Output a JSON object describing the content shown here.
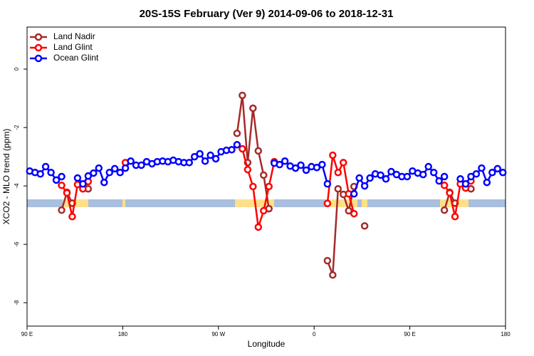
{
  "chart_data": {
    "type": "line",
    "title": "20S-15S February (Ver 9)   2014-09-06 to 2018-12-31",
    "x_label": "Longitude",
    "y_label": "XCO2 - MLO trend (ppm)",
    "xlim": [
      90,
      540
    ],
    "ylim": [
      -8.8,
      1.44
    ],
    "xticks": [
      {
        "value": 90,
        "label": "90 E"
      },
      180,
      {
        "value": 270,
        "label": "90 W"
      },
      {
        "value": 360,
        "label": "0"
      },
      {
        "value": 450,
        "label": "90 E"
      },
      {
        "value": 540,
        "label": "180"
      }
    ],
    "yticks": [
      0,
      -2,
      -4,
      -6,
      -8
    ],
    "legend": "upper left",
    "x": [
      92.5,
      97.5,
      102.5,
      107.5,
      112.5,
      117.5,
      122.5,
      127.5,
      132.5,
      137.5,
      142.5,
      147.5,
      152.5,
      157.5,
      162.5,
      167.5,
      172.5,
      177.5,
      182.5,
      187.5,
      192.5,
      197.5,
      202.5,
      207.5,
      212.5,
      217.5,
      222.5,
      227.5,
      232.5,
      237.5,
      242.5,
      247.5,
      252.5,
      257.5,
      262.5,
      267.5,
      272.5,
      277.5,
      282.5,
      287.5,
      292.5,
      297.5,
      302.5,
      307.5,
      312.5,
      317.5,
      322.5,
      327.5,
      332.5,
      337.5,
      342.5,
      347.5,
      352.5,
      357.5,
      362.5,
      367.5,
      372.5,
      377.5,
      382.5,
      387.5,
      392.5,
      397.5,
      402.5,
      407.5,
      412.5,
      417.5,
      422.5,
      427.5,
      432.5,
      437.5,
      442.5,
      447.5,
      452.5,
      457.5,
      462.5,
      467.5,
      472.5,
      477.5,
      482.5,
      487.5,
      492.5,
      497.5,
      502.5,
      507.5,
      512.5,
      517.5,
      522.5,
      527.5,
      532.5,
      537.5
    ],
    "series": [
      {
        "name": "Land Nadir",
        "color": "#a52a2a",
        "values": [
          null,
          null,
          null,
          null,
          null,
          null,
          -4.83,
          -4.22,
          -4.59,
          null,
          -4.07,
          -4.1,
          null,
          null,
          null,
          null,
          null,
          null,
          null,
          null,
          null,
          null,
          null,
          null,
          null,
          null,
          null,
          null,
          null,
          null,
          null,
          null,
          null,
          null,
          null,
          null,
          null,
          null,
          null,
          -2.2,
          -0.9,
          -3.2,
          -1.34,
          -2.8,
          -3.63,
          -4.78,
          null,
          null,
          null,
          null,
          null,
          null,
          null,
          null,
          null,
          null,
          -6.56,
          -7.05,
          -4.1,
          -4.29,
          -4.85,
          -4.02,
          null,
          -5.37,
          null,
          null,
          null,
          null,
          null,
          null,
          null,
          null,
          null,
          null,
          null,
          null,
          null,
          null,
          -4.83,
          -4.22,
          -4.59,
          null,
          -4.07,
          -4.1,
          null,
          null,
          null,
          null,
          null,
          null
        ]
      },
      {
        "name": "Land Glint",
        "color": "#ff0000",
        "values": [
          null,
          null,
          null,
          null,
          null,
          null,
          -3.98,
          -4.24,
          -5.05,
          -3.95,
          -4.1,
          -3.85,
          null,
          null,
          null,
          null,
          null,
          null,
          -3.2,
          null,
          null,
          null,
          null,
          null,
          null,
          null,
          null,
          null,
          null,
          null,
          null,
          null,
          null,
          null,
          null,
          null,
          null,
          null,
          null,
          null,
          -2.73,
          -3.44,
          -4.02,
          -5.41,
          -4.85,
          -4.02,
          -3.17,
          null,
          null,
          null,
          null,
          null,
          null,
          null,
          null,
          null,
          -4.6,
          -2.95,
          -3.54,
          -3.2,
          -4.27,
          -4.95,
          null,
          null,
          null,
          null,
          null,
          null,
          null,
          null,
          null,
          null,
          null,
          null,
          null,
          null,
          null,
          null,
          -3.98,
          -4.24,
          -5.05,
          -3.93,
          -4.07,
          -3.83,
          null,
          null,
          null,
          null,
          null,
          null
        ]
      },
      {
        "name": "Ocean Glint",
        "color": "#0000ff",
        "values": [
          -3.49,
          -3.54,
          -3.59,
          -3.34,
          -3.54,
          -3.8,
          -3.68,
          null,
          null,
          -3.73,
          -3.93,
          -3.66,
          -3.56,
          -3.39,
          -3.88,
          -3.54,
          -3.41,
          -3.54,
          -3.39,
          -3.15,
          -3.29,
          -3.29,
          -3.17,
          -3.24,
          -3.17,
          -3.15,
          -3.17,
          -3.12,
          -3.17,
          -3.2,
          -3.2,
          -3.0,
          -2.9,
          -3.15,
          -2.95,
          -3.07,
          -2.83,
          -2.78,
          -2.76,
          -2.59,
          null,
          null,
          null,
          null,
          null,
          null,
          -3.22,
          -3.27,
          -3.15,
          -3.32,
          -3.39,
          -3.29,
          -3.46,
          -3.34,
          -3.37,
          -3.27,
          -3.93,
          null,
          null,
          null,
          null,
          -4.27,
          -3.73,
          -4.0,
          -3.73,
          -3.59,
          -3.63,
          -3.76,
          -3.51,
          -3.61,
          -3.68,
          -3.68,
          -3.49,
          -3.56,
          -3.61,
          -3.34,
          -3.54,
          -3.83,
          -3.68,
          null,
          null,
          -3.76,
          -3.93,
          -3.68,
          -3.59,
          -3.39,
          -3.88,
          -3.54,
          -3.41,
          -3.54
        ]
      }
    ]
  }
}
